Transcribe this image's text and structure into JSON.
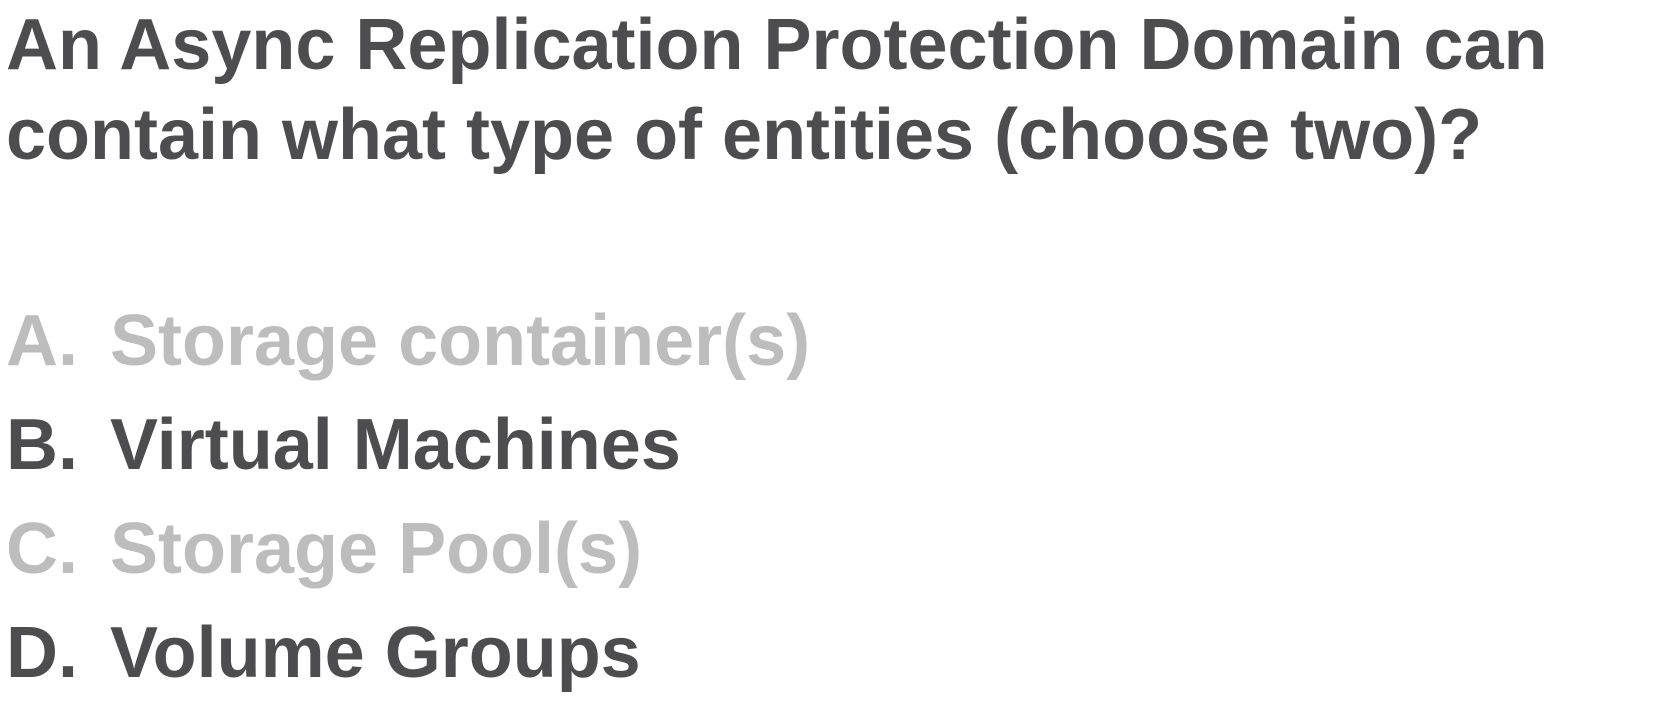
{
  "question": {
    "line1": "An Async Replication Protection Domain can",
    "line2": "contain what type of entities (choose two)?"
  },
  "options": [
    {
      "letter": "A.",
      "text": "Storage container(s)",
      "state": "incorrect"
    },
    {
      "letter": "B.",
      "text": "Virtual Machines",
      "state": "correct"
    },
    {
      "letter": "C.",
      "text": "Storage Pool(s)",
      "state": "incorrect"
    },
    {
      "letter": "D.",
      "text": "Volume Groups",
      "state": "correct"
    }
  ],
  "colors": {
    "text_dark": "#4d4d4f",
    "text_muted": "#bdbdbd",
    "background": "#ffffff"
  }
}
